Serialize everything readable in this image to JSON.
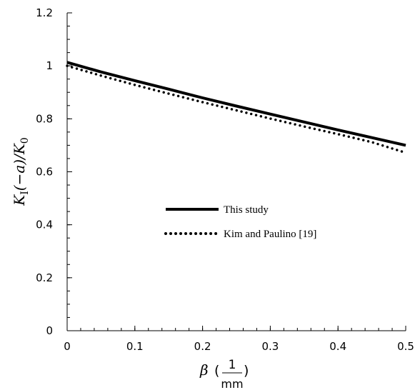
{
  "chart_data": {
    "type": "line",
    "xlabel": {
      "symbol": "β",
      "open": "(",
      "numerator": "1",
      "denominator": "mm",
      "close": ")"
    },
    "ylabel": {
      "main": "K",
      "sub1": "I",
      "mid": "(−a)/K",
      "sub2": "0"
    },
    "xlim": [
      0,
      0.5
    ],
    "ylim": [
      0,
      1.2
    ],
    "x_ticks": [
      0,
      0.1,
      0.2,
      0.3,
      0.4,
      0.5
    ],
    "x_tick_labels": [
      "0",
      "0.1",
      "0.2",
      "0.3",
      "0.4",
      "0.5"
    ],
    "y_ticks": [
      0,
      0.2,
      0.4,
      0.6,
      0.8,
      1.0,
      1.2
    ],
    "y_tick_labels": [
      "0",
      "0.2",
      "0.4",
      "0.6",
      "0.8",
      "1",
      "1.2"
    ],
    "grid": false,
    "legend_position": "center",
    "series": [
      {
        "name": "This study",
        "style": "solid",
        "color": "#000000",
        "x": [
          0,
          0.05,
          0.1,
          0.15,
          0.2,
          0.25,
          0.3,
          0.35,
          0.4,
          0.45,
          0.5
        ],
        "y": [
          1.013,
          0.977,
          0.944,
          0.912,
          0.879,
          0.848,
          0.818,
          0.788,
          0.758,
          0.729,
          0.7
        ]
      },
      {
        "name": "Kim and Paulino [19]",
        "style": "dotted",
        "color": "#000000",
        "x": [
          0,
          0.05,
          0.1,
          0.15,
          0.2,
          0.25,
          0.3,
          0.35,
          0.4,
          0.45,
          0.5
        ],
        "y": [
          1.0,
          0.963,
          0.928,
          0.895,
          0.863,
          0.832,
          0.801,
          0.771,
          0.742,
          0.712,
          0.672
        ]
      }
    ]
  }
}
